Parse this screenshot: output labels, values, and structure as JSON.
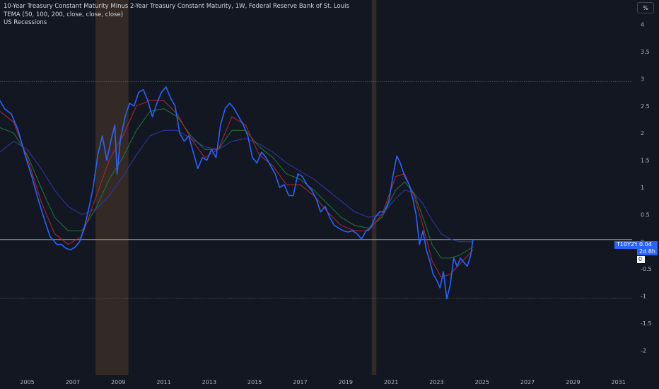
{
  "legend": {
    "title": "10-Year Treasury Constant Maturity Minus 2-Year Treasury Constant Maturity, 1W, Federal Reserve Bank of St. Louis",
    "indicator": "TEMA (50, 100, 200, close, close, close)",
    "overlay": "US Recessions"
  },
  "scale_button": "%",
  "price_tag": {
    "symbol": "T10Y2Y",
    "value": "0.04",
    "countdown": "2d 8h"
  },
  "zero_tag": "0",
  "colors": {
    "background": "#131722",
    "price": "#2962ff",
    "tema_fast": "#b22833",
    "tema_mid": "#1f7a3a",
    "tema_slow": "#2f3aa8",
    "recession": "#3a2e26",
    "grid_text": "#b2b5be"
  },
  "chart_data": {
    "type": "line",
    "y_ticks": [
      "4",
      "3.5",
      "3",
      "2.5",
      "2",
      "1.5",
      "1",
      "0.5",
      "0",
      "-0.5",
      "-1",
      "-1.5",
      "-2"
    ],
    "y_tick_values": [
      4,
      3.5,
      3,
      2.5,
      2,
      1.5,
      1,
      0.5,
      0,
      -0.5,
      -1,
      -1.5,
      -2
    ],
    "x_ticks": [
      "2005",
      "2007",
      "2009",
      "2011",
      "2013",
      "2015",
      "2017",
      "2019",
      "2021",
      "2023",
      "2025",
      "2027",
      "2029",
      "2031"
    ],
    "x_tick_values": [
      2005,
      2007,
      2009,
      2011,
      2013,
      2015,
      2017,
      2019,
      2021,
      2023,
      2025,
      2027,
      2029,
      2031
    ],
    "xlim": [
      2003.8,
      2031.6
    ],
    "ylim": [
      -2.45,
      4.45
    ],
    "horizontal_lines": [
      2.95,
      -1.04,
      0.04
    ],
    "recessions": [
      [
        2008.0,
        2009.45
      ],
      [
        2020.15,
        2020.35
      ]
    ],
    "series": [
      {
        "name": "T10Y2Y",
        "color": "#2962ff",
        "points": [
          [
            2003.8,
            2.6
          ],
          [
            2004.0,
            2.45
          ],
          [
            2004.3,
            2.35
          ],
          [
            2004.6,
            2.05
          ],
          [
            2004.9,
            1.6
          ],
          [
            2005.2,
            1.2
          ],
          [
            2005.5,
            0.75
          ],
          [
            2005.8,
            0.35
          ],
          [
            2006.0,
            0.1
          ],
          [
            2006.3,
            -0.05
          ],
          [
            2006.5,
            -0.05
          ],
          [
            2006.7,
            -0.12
          ],
          [
            2006.9,
            -0.15
          ],
          [
            2007.1,
            -0.1
          ],
          [
            2007.3,
            0.0
          ],
          [
            2007.5,
            0.25
          ],
          [
            2007.7,
            0.6
          ],
          [
            2007.9,
            1.0
          ],
          [
            2008.1,
            1.6
          ],
          [
            2008.3,
            1.95
          ],
          [
            2008.5,
            1.5
          ],
          [
            2008.7,
            1.9
          ],
          [
            2008.85,
            2.15
          ],
          [
            2008.95,
            1.25
          ],
          [
            2009.1,
            1.9
          ],
          [
            2009.3,
            2.3
          ],
          [
            2009.5,
            2.55
          ],
          [
            2009.7,
            2.5
          ],
          [
            2009.9,
            2.75
          ],
          [
            2010.1,
            2.8
          ],
          [
            2010.3,
            2.6
          ],
          [
            2010.5,
            2.3
          ],
          [
            2010.7,
            2.55
          ],
          [
            2010.9,
            2.75
          ],
          [
            2011.1,
            2.85
          ],
          [
            2011.3,
            2.65
          ],
          [
            2011.5,
            2.5
          ],
          [
            2011.7,
            2.0
          ],
          [
            2011.9,
            1.85
          ],
          [
            2012.1,
            1.95
          ],
          [
            2012.3,
            1.65
          ],
          [
            2012.5,
            1.35
          ],
          [
            2012.7,
            1.55
          ],
          [
            2012.9,
            1.5
          ],
          [
            2013.1,
            1.7
          ],
          [
            2013.3,
            1.55
          ],
          [
            2013.5,
            2.15
          ],
          [
            2013.7,
            2.45
          ],
          [
            2013.9,
            2.55
          ],
          [
            2014.1,
            2.45
          ],
          [
            2014.3,
            2.3
          ],
          [
            2014.5,
            2.15
          ],
          [
            2014.7,
            1.95
          ],
          [
            2014.9,
            1.55
          ],
          [
            2015.1,
            1.45
          ],
          [
            2015.3,
            1.65
          ],
          [
            2015.5,
            1.55
          ],
          [
            2015.7,
            1.4
          ],
          [
            2015.9,
            1.25
          ],
          [
            2016.1,
            1.0
          ],
          [
            2016.3,
            1.05
          ],
          [
            2016.5,
            0.85
          ],
          [
            2016.7,
            0.85
          ],
          [
            2016.9,
            1.25
          ],
          [
            2017.1,
            1.2
          ],
          [
            2017.3,
            1.05
          ],
          [
            2017.5,
            0.95
          ],
          [
            2017.7,
            0.8
          ],
          [
            2017.9,
            0.55
          ],
          [
            2018.1,
            0.65
          ],
          [
            2018.3,
            0.45
          ],
          [
            2018.5,
            0.3
          ],
          [
            2018.7,
            0.25
          ],
          [
            2018.9,
            0.2
          ],
          [
            2019.1,
            0.18
          ],
          [
            2019.3,
            0.2
          ],
          [
            2019.5,
            0.15
          ],
          [
            2019.7,
            0.05
          ],
          [
            2019.9,
            0.2
          ],
          [
            2020.1,
            0.25
          ],
          [
            2020.3,
            0.45
          ],
          [
            2020.5,
            0.55
          ],
          [
            2020.7,
            0.55
          ],
          [
            2020.9,
            0.75
          ],
          [
            2021.1,
            1.25
          ],
          [
            2021.25,
            1.58
          ],
          [
            2021.4,
            1.45
          ],
          [
            2021.6,
            1.2
          ],
          [
            2021.8,
            1.05
          ],
          [
            2021.95,
            0.8
          ],
          [
            2022.1,
            0.5
          ],
          [
            2022.25,
            -0.05
          ],
          [
            2022.4,
            0.2
          ],
          [
            2022.55,
            -0.15
          ],
          [
            2022.7,
            -0.35
          ],
          [
            2022.85,
            -0.6
          ],
          [
            2023.0,
            -0.7
          ],
          [
            2023.15,
            -0.85
          ],
          [
            2023.3,
            -0.55
          ],
          [
            2023.45,
            -1.05
          ],
          [
            2023.6,
            -0.8
          ],
          [
            2023.75,
            -0.3
          ],
          [
            2023.9,
            -0.45
          ],
          [
            2024.05,
            -0.3
          ],
          [
            2024.2,
            -0.38
          ],
          [
            2024.35,
            -0.45
          ],
          [
            2024.5,
            -0.25
          ],
          [
            2024.6,
            0.04
          ]
        ]
      },
      {
        "name": "TEMA 50",
        "color": "#b22833",
        "points": [
          [
            2003.8,
            2.4
          ],
          [
            2004.4,
            2.2
          ],
          [
            2005.0,
            1.55
          ],
          [
            2005.6,
            0.75
          ],
          [
            2006.2,
            0.15
          ],
          [
            2006.8,
            -0.05
          ],
          [
            2007.4,
            0.1
          ],
          [
            2008.0,
            0.8
          ],
          [
            2008.6,
            1.5
          ],
          [
            2009.2,
            1.95
          ],
          [
            2009.8,
            2.5
          ],
          [
            2010.4,
            2.6
          ],
          [
            2011.0,
            2.6
          ],
          [
            2011.6,
            2.35
          ],
          [
            2012.2,
            1.9
          ],
          [
            2012.8,
            1.55
          ],
          [
            2013.4,
            1.7
          ],
          [
            2014.0,
            2.3
          ],
          [
            2014.6,
            2.15
          ],
          [
            2015.2,
            1.6
          ],
          [
            2015.8,
            1.4
          ],
          [
            2016.4,
            1.05
          ],
          [
            2017.0,
            1.05
          ],
          [
            2017.6,
            0.85
          ],
          [
            2018.2,
            0.55
          ],
          [
            2018.8,
            0.3
          ],
          [
            2019.4,
            0.2
          ],
          [
            2020.0,
            0.2
          ],
          [
            2020.6,
            0.5
          ],
          [
            2021.2,
            1.2
          ],
          [
            2021.6,
            1.25
          ],
          [
            2022.0,
            0.85
          ],
          [
            2022.4,
            0.3
          ],
          [
            2022.8,
            -0.35
          ],
          [
            2023.2,
            -0.65
          ],
          [
            2023.6,
            -0.6
          ],
          [
            2024.0,
            -0.42
          ],
          [
            2024.6,
            -0.15
          ]
        ]
      },
      {
        "name": "TEMA 100",
        "color": "#1f7a3a",
        "points": [
          [
            2003.8,
            2.1
          ],
          [
            2004.4,
            2.0
          ],
          [
            2005.0,
            1.6
          ],
          [
            2005.6,
            1.0
          ],
          [
            2006.2,
            0.45
          ],
          [
            2006.8,
            0.2
          ],
          [
            2007.4,
            0.2
          ],
          [
            2008.0,
            0.6
          ],
          [
            2008.6,
            1.15
          ],
          [
            2009.2,
            1.55
          ],
          [
            2009.8,
            2.05
          ],
          [
            2010.4,
            2.4
          ],
          [
            2011.0,
            2.45
          ],
          [
            2011.6,
            2.3
          ],
          [
            2012.2,
            1.95
          ],
          [
            2012.8,
            1.7
          ],
          [
            2013.4,
            1.7
          ],
          [
            2014.0,
            2.05
          ],
          [
            2014.6,
            2.05
          ],
          [
            2015.2,
            1.75
          ],
          [
            2015.8,
            1.55
          ],
          [
            2016.4,
            1.25
          ],
          [
            2017.0,
            1.15
          ],
          [
            2017.6,
            0.95
          ],
          [
            2018.2,
            0.7
          ],
          [
            2018.8,
            0.45
          ],
          [
            2019.4,
            0.3
          ],
          [
            2020.0,
            0.25
          ],
          [
            2020.6,
            0.45
          ],
          [
            2021.2,
            0.95
          ],
          [
            2021.6,
            1.1
          ],
          [
            2022.0,
            0.9
          ],
          [
            2022.4,
            0.45
          ],
          [
            2022.8,
            -0.05
          ],
          [
            2023.2,
            -0.3
          ],
          [
            2023.6,
            -0.3
          ],
          [
            2024.0,
            -0.25
          ],
          [
            2024.6,
            -0.1
          ]
        ]
      },
      {
        "name": "TEMA 200",
        "color": "#2f3aa8",
        "points": [
          [
            2003.8,
            1.65
          ],
          [
            2004.4,
            1.85
          ],
          [
            2005.0,
            1.7
          ],
          [
            2005.6,
            1.35
          ],
          [
            2006.2,
            0.95
          ],
          [
            2006.8,
            0.65
          ],
          [
            2007.4,
            0.5
          ],
          [
            2008.0,
            0.6
          ],
          [
            2008.6,
            0.85
          ],
          [
            2009.2,
            1.2
          ],
          [
            2009.8,
            1.6
          ],
          [
            2010.4,
            1.95
          ],
          [
            2011.0,
            2.05
          ],
          [
            2011.6,
            2.05
          ],
          [
            2012.2,
            1.9
          ],
          [
            2012.8,
            1.75
          ],
          [
            2013.4,
            1.7
          ],
          [
            2014.0,
            1.85
          ],
          [
            2014.6,
            1.9
          ],
          [
            2015.2,
            1.8
          ],
          [
            2015.8,
            1.65
          ],
          [
            2016.4,
            1.45
          ],
          [
            2017.0,
            1.3
          ],
          [
            2017.6,
            1.15
          ],
          [
            2018.2,
            0.95
          ],
          [
            2018.8,
            0.75
          ],
          [
            2019.4,
            0.55
          ],
          [
            2020.0,
            0.45
          ],
          [
            2020.6,
            0.5
          ],
          [
            2021.2,
            0.8
          ],
          [
            2021.6,
            0.95
          ],
          [
            2022.0,
            0.9
          ],
          [
            2022.4,
            0.7
          ],
          [
            2022.8,
            0.4
          ],
          [
            2023.2,
            0.15
          ],
          [
            2023.6,
            0.05
          ],
          [
            2024.0,
            0.0
          ],
          [
            2024.6,
            0.0
          ]
        ]
      }
    ],
    "last_value": 0.04
  }
}
